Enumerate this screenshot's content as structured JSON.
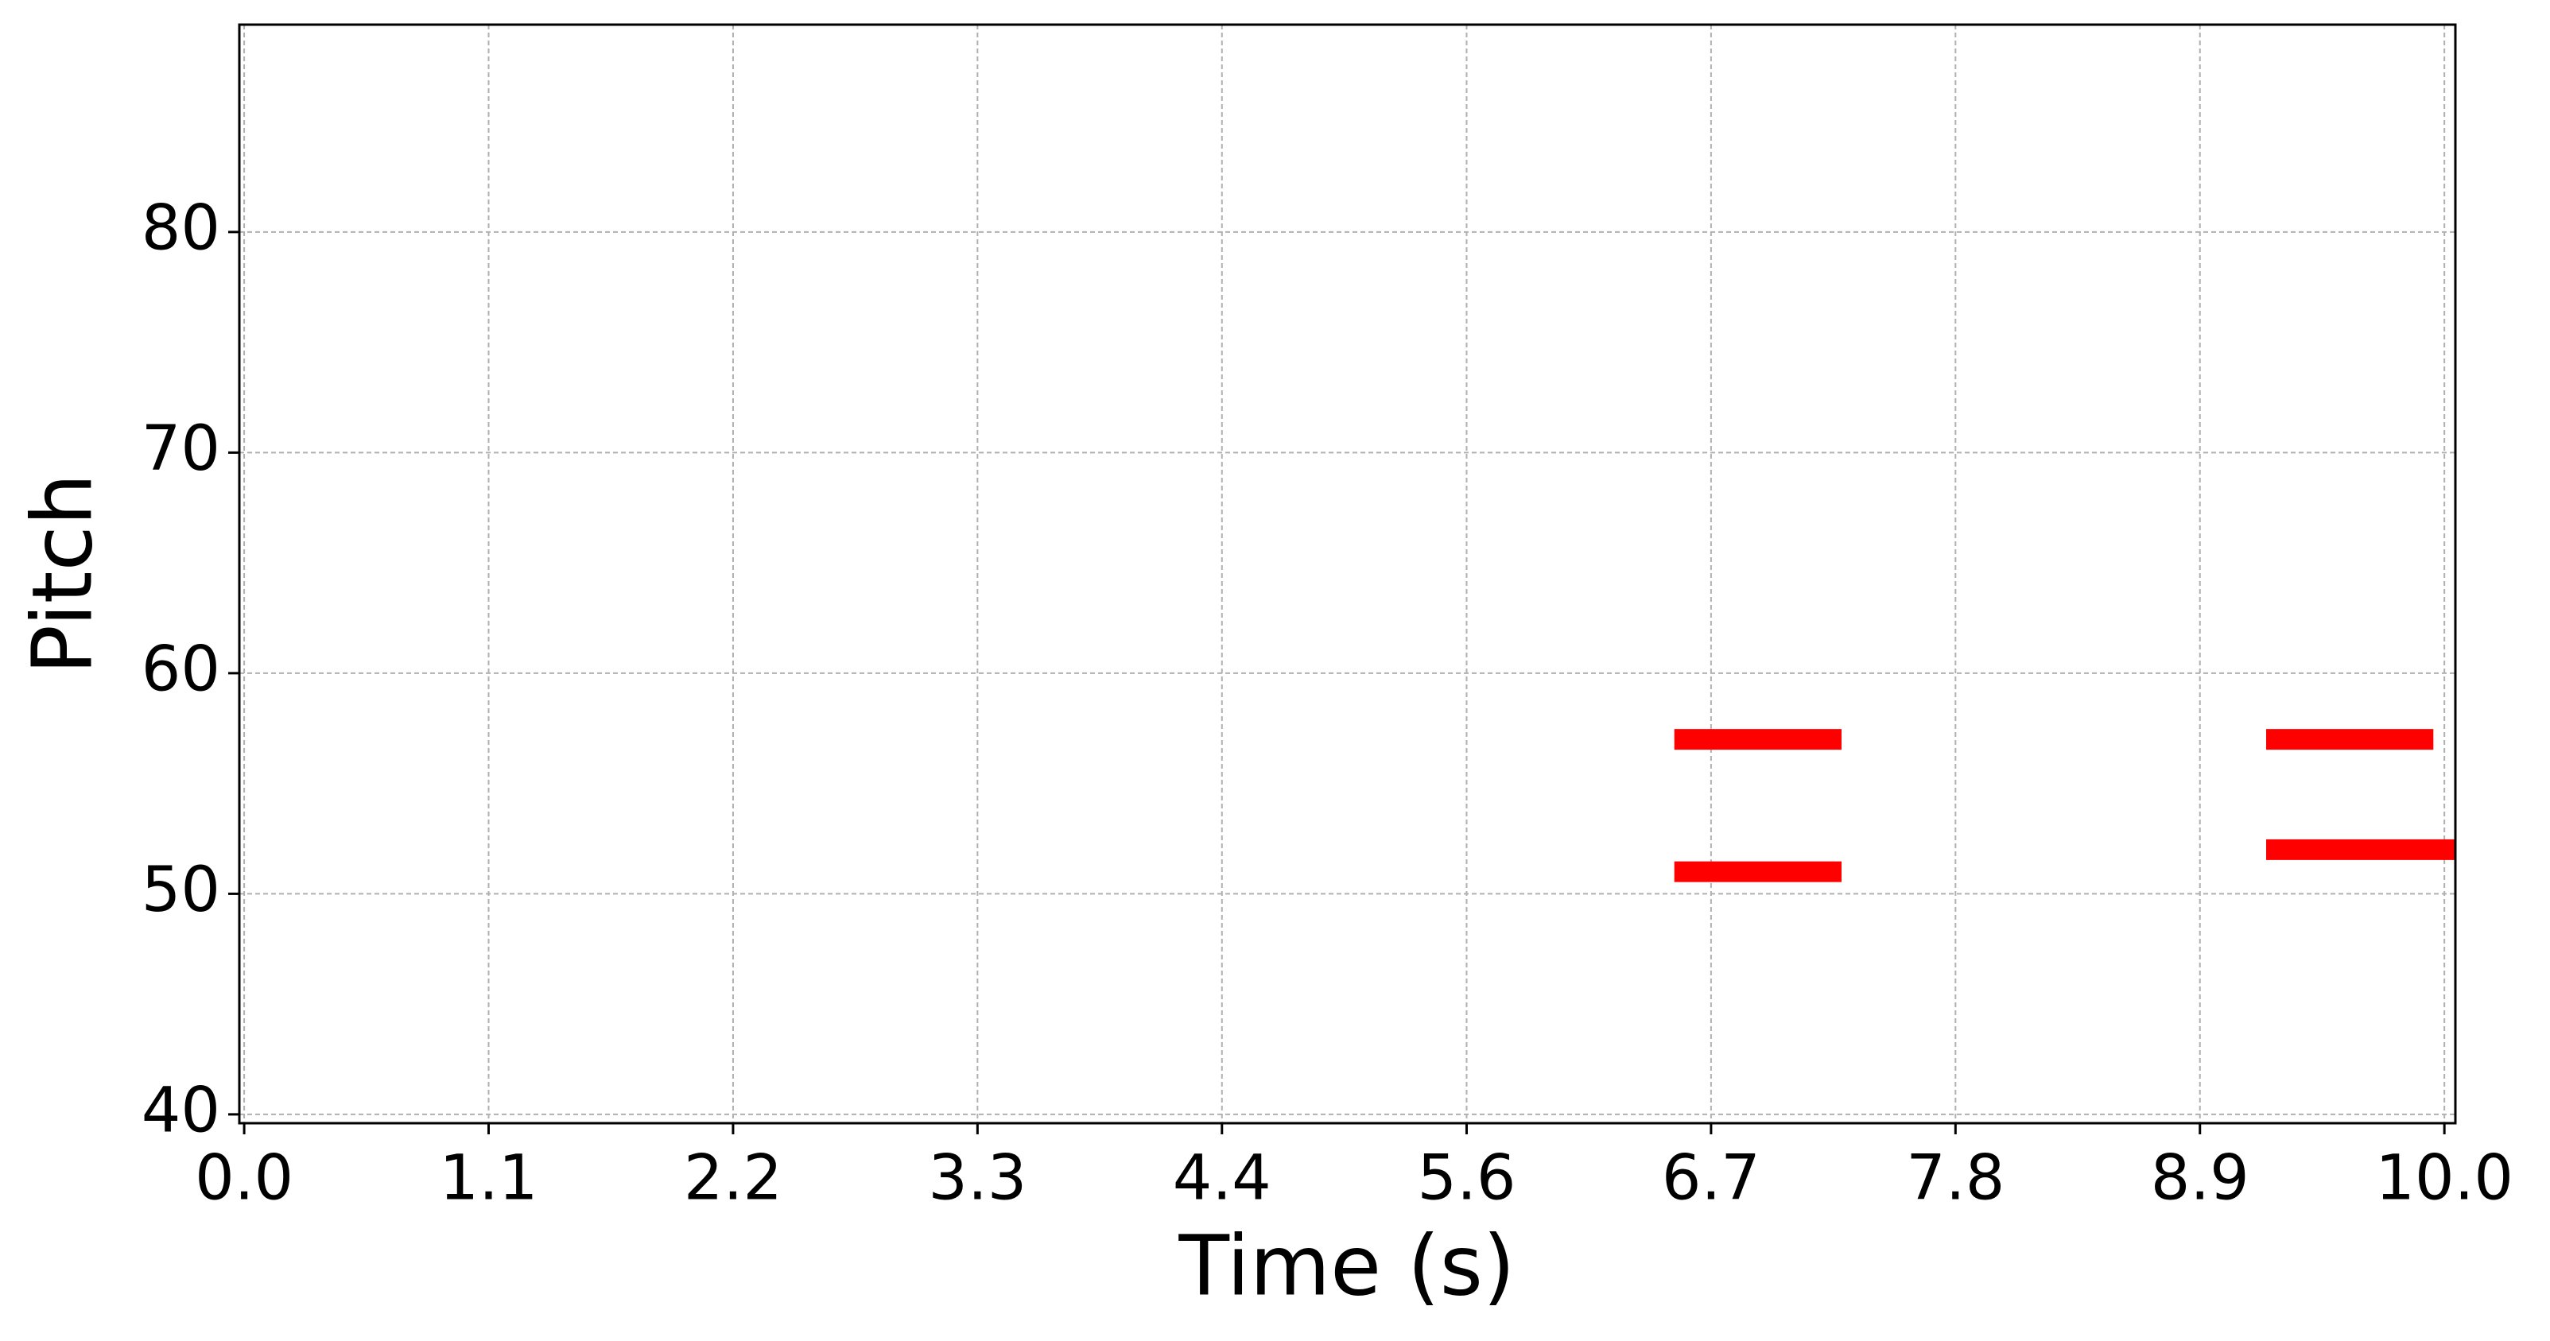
{
  "chart_data": {
    "type": "piano_roll",
    "xlabel": "Time (s)",
    "ylabel": "Pitch",
    "notes": [
      {
        "x": [
          6.5,
          7.26
        ],
        "y": 57
      },
      {
        "x": [
          6.5,
          7.26
        ],
        "y": 51
      },
      {
        "x": [
          9.19,
          9.95
        ],
        "y": 57
      },
      {
        "x": [
          9.19,
          10.2
        ],
        "y": 52
      }
    ],
    "color": "#ff0000",
    "xlim": [
      -0.022,
      10.05
    ],
    "xticks": [
      {
        "value": 0,
        "label": "0.0"
      },
      {
        "value": 1.111,
        "label": "1.1"
      },
      {
        "value": 2.222,
        "label": "2.2"
      },
      {
        "value": 3.333,
        "label": "3.3"
      },
      {
        "value": 4.444,
        "label": "4.4"
      },
      {
        "value": 5.556,
        "label": "5.6"
      },
      {
        "value": 6.667,
        "label": "6.7"
      },
      {
        "value": 7.778,
        "label": "7.8"
      },
      {
        "value": 8.889,
        "label": "8.9"
      },
      {
        "value": 10,
        "label": "10.0"
      }
    ],
    "ylim": [
      39.6,
      89.4
    ],
    "yticks": [
      40,
      50,
      60,
      70,
      80
    ],
    "grid": true
  }
}
